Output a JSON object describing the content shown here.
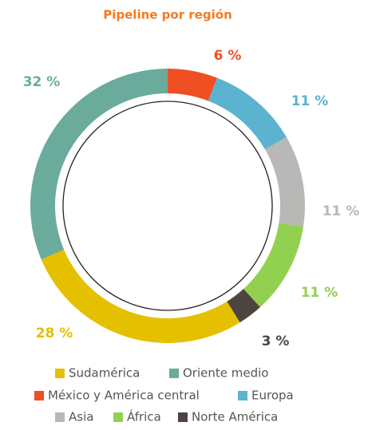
{
  "chart_data": {
    "type": "donut",
    "title": "Pipeline por región",
    "categories": [
      "Sudamérica",
      "Oriente medio",
      "México y América central",
      "Europa",
      "Asia",
      "África",
      "Norte América"
    ],
    "values": [
      28,
      32,
      6,
      11,
      11,
      11,
      3
    ],
    "value_labels": [
      "28 %",
      "32 %",
      "6 %",
      "11 %",
      "11 %",
      "11 %",
      "3 %"
    ],
    "colors": [
      "#e5c000",
      "#6aab9c",
      "#f04e23",
      "#5bb3d0",
      "#b8b8b6",
      "#92d050",
      "#4d4440"
    ],
    "legend": "bottom"
  }
}
